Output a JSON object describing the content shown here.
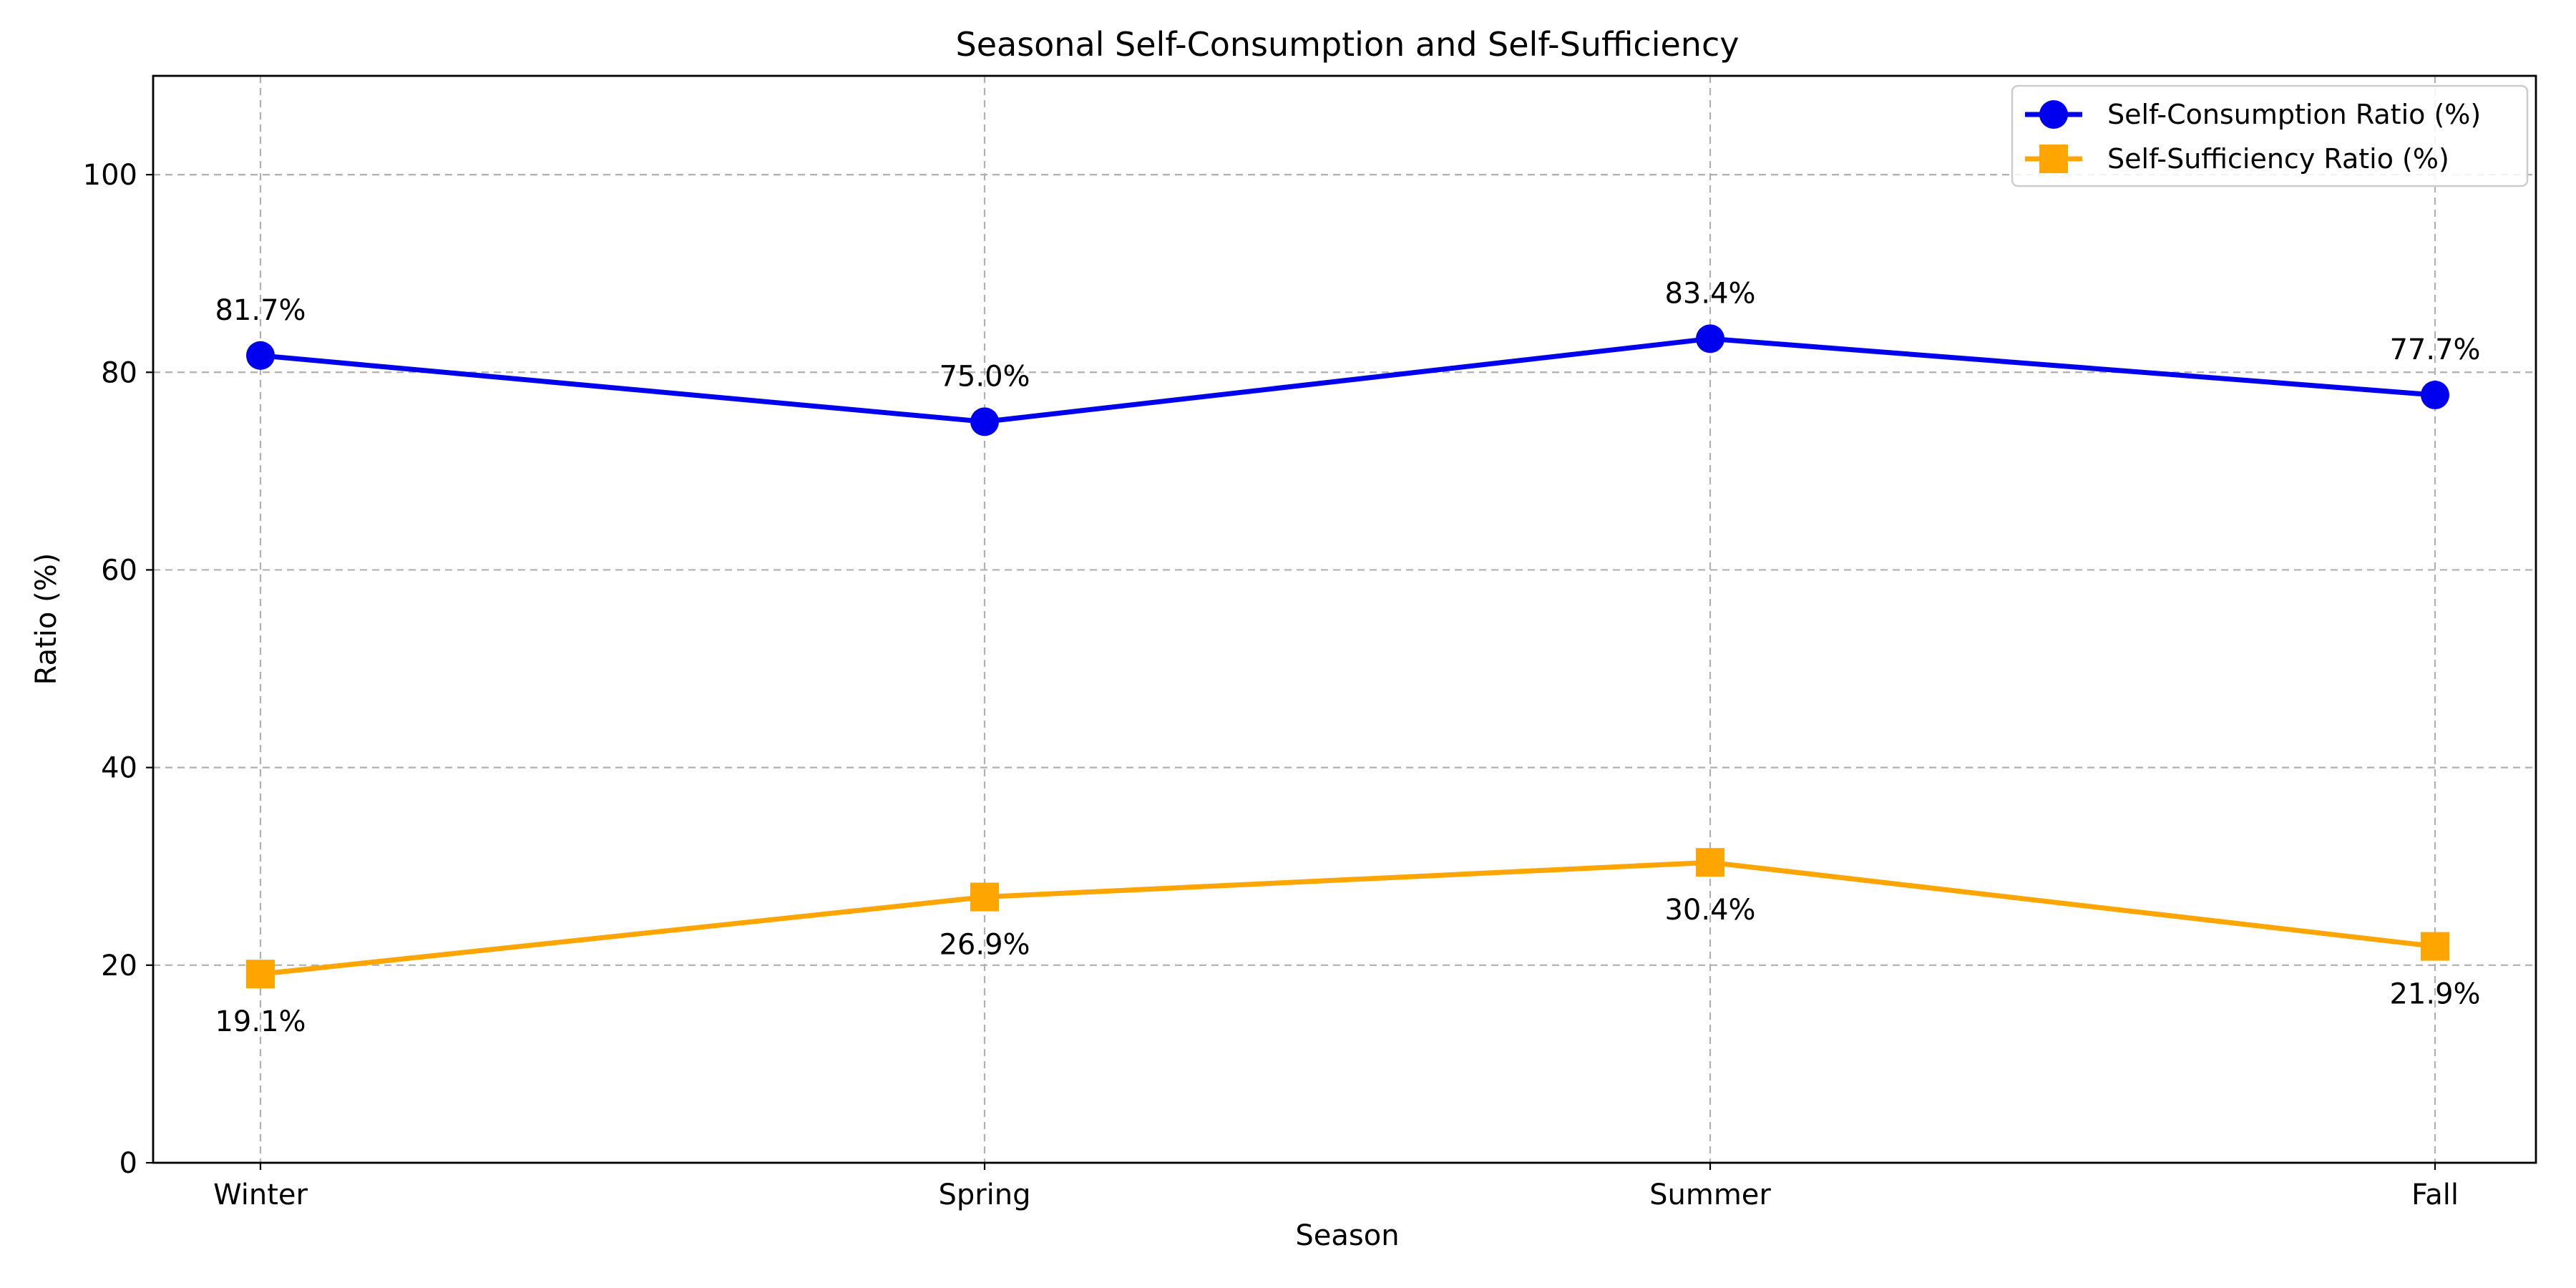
{
  "chart_data": {
    "type": "line",
    "title": "Seasonal Self-Consumption and Self-Sufficiency",
    "xlabel": "Season",
    "ylabel": "Ratio (%)",
    "categories": [
      "Winter",
      "Spring",
      "Summer",
      "Fall"
    ],
    "ylim": [
      0,
      110
    ],
    "yticks": [
      0,
      20,
      40,
      60,
      80,
      100
    ],
    "grid": true,
    "legend_position": "top-right",
    "series": [
      {
        "name": "Self-Consumption Ratio (%)",
        "values": [
          81.7,
          75.0,
          83.4,
          77.7
        ],
        "labels": [
          "81.7%",
          "75.0%",
          "83.4%",
          "77.7%"
        ],
        "label_position": "above",
        "color": "#0000ee",
        "marker": "circle"
      },
      {
        "name": "Self-Sufficiency Ratio (%)",
        "values": [
          19.1,
          26.9,
          30.4,
          21.9
        ],
        "labels": [
          "19.1%",
          "26.9%",
          "30.4%",
          "21.9%"
        ],
        "label_position": "below",
        "color": "#ffa500",
        "marker": "square"
      }
    ]
  }
}
